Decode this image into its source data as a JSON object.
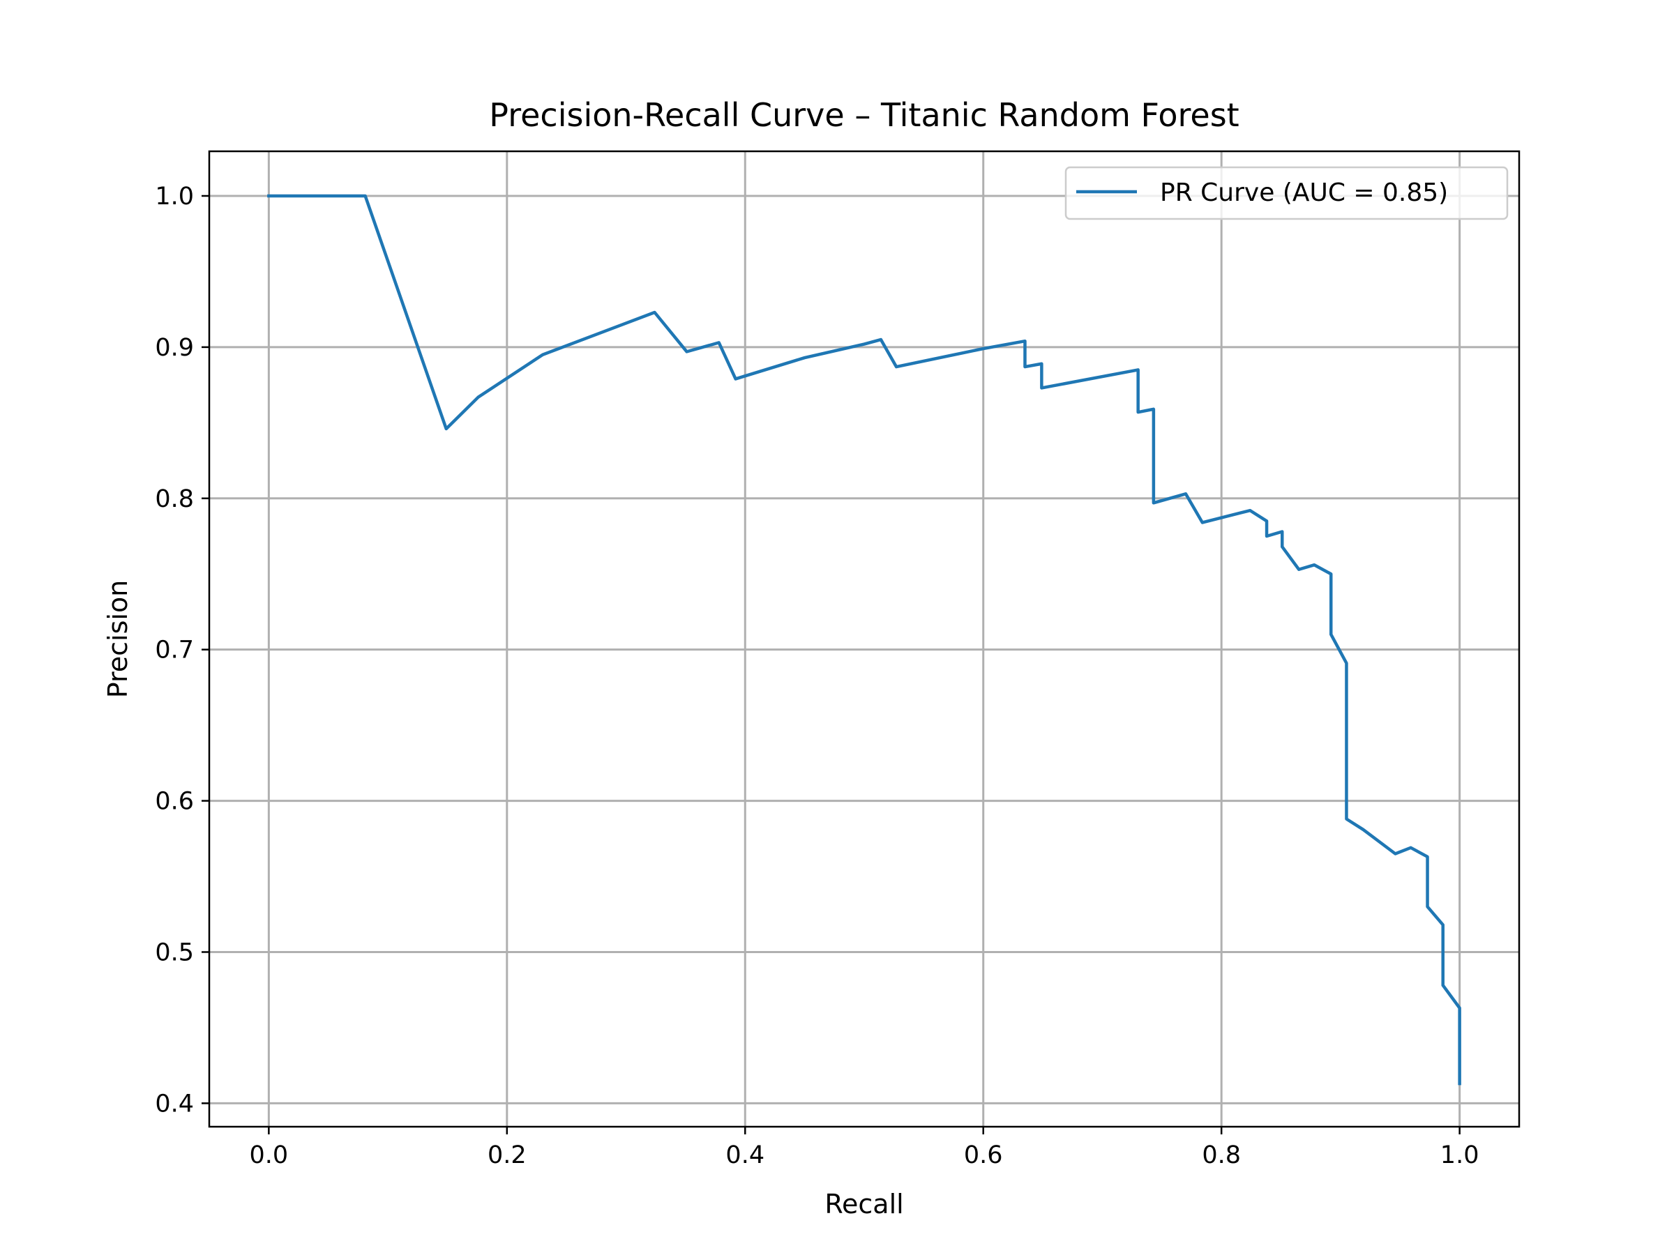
{
  "chart_data": {
    "type": "line",
    "title": "Precision-Recall Curve – Titanic Random Forest",
    "xlabel": "Recall",
    "ylabel": "Precision",
    "xlim": [
      -0.05,
      1.05
    ],
    "ylim": [
      0.3845,
      1.0295
    ],
    "xticks": [
      0.0,
      0.2,
      0.4,
      0.6,
      0.8,
      1.0
    ],
    "xtick_labels": [
      "0.0",
      "0.2",
      "0.4",
      "0.6",
      "0.8",
      "1.0"
    ],
    "yticks": [
      0.4,
      0.5,
      0.6,
      0.7,
      0.8,
      0.9,
      1.0
    ],
    "ytick_labels": [
      "0.4",
      "0.5",
      "0.6",
      "0.7",
      "0.8",
      "0.9",
      "1.0"
    ],
    "grid": true,
    "legend_position": "top-right",
    "series": [
      {
        "name": "PR Curve (AUC = 0.85)",
        "color": "#1f77b4",
        "x": [
          0.0,
          0.081,
          0.149,
          0.176,
          0.23,
          0.324,
          0.351,
          0.378,
          0.392,
          0.45,
          0.5,
          0.514,
          0.527,
          0.6,
          0.635,
          0.635,
          0.649,
          0.649,
          0.73,
          0.73,
          0.743,
          0.743,
          0.77,
          0.784,
          0.824,
          0.838,
          0.838,
          0.851,
          0.851,
          0.865,
          0.878,
          0.892,
          0.892,
          0.905,
          0.905,
          0.919,
          0.946,
          0.959,
          0.973,
          0.973,
          0.986,
          0.986,
          1.0,
          1.0
        ],
        "y": [
          1.0,
          1.0,
          0.846,
          0.867,
          0.895,
          0.923,
          0.897,
          0.903,
          0.879,
          0.893,
          0.902,
          0.905,
          0.887,
          0.899,
          0.904,
          0.887,
          0.889,
          0.873,
          0.885,
          0.857,
          0.859,
          0.797,
          0.803,
          0.784,
          0.792,
          0.785,
          0.775,
          0.778,
          0.768,
          0.753,
          0.756,
          0.75,
          0.71,
          0.691,
          0.588,
          0.581,
          0.565,
          0.569,
          0.563,
          0.53,
          0.518,
          0.478,
          0.463,
          0.413
        ]
      }
    ]
  }
}
